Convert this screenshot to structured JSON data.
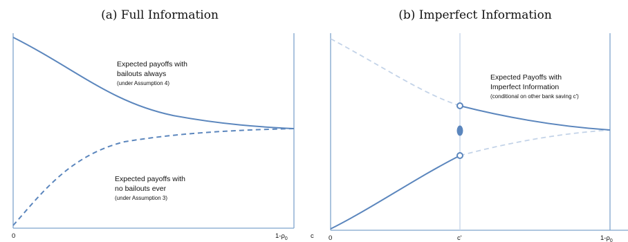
{
  "panels": [
    {
      "title": "(a) Full Information",
      "ann1_line1": "Expected payoffs with",
      "ann1_line2": "bailouts always",
      "ann1_line3": "(under Assumption 4)",
      "ann2_line1": "Expected payoffs with",
      "ann2_line2": "no bailouts ever",
      "ann2_line3": "(under Assumption 3)",
      "tick_zero": "0",
      "tick_end": "1-ρ",
      "tick_end_sub": "0",
      "axis_var": "c"
    },
    {
      "title": "(b) Imperfect Information",
      "ann1_line1": "Expected Payoffs with",
      "ann1_line2": "Imperfect Information",
      "ann1_line3": "(conditional on other bank saving c')",
      "tick_zero": "0",
      "tick_mid": "c'",
      "tick_end": "1-ρ",
      "tick_end_sub": "0"
    }
  ],
  "colors": {
    "curve": "#5b86bd",
    "curve_faint": "#c3d3e8",
    "axis": "#7ea3cc"
  }
}
